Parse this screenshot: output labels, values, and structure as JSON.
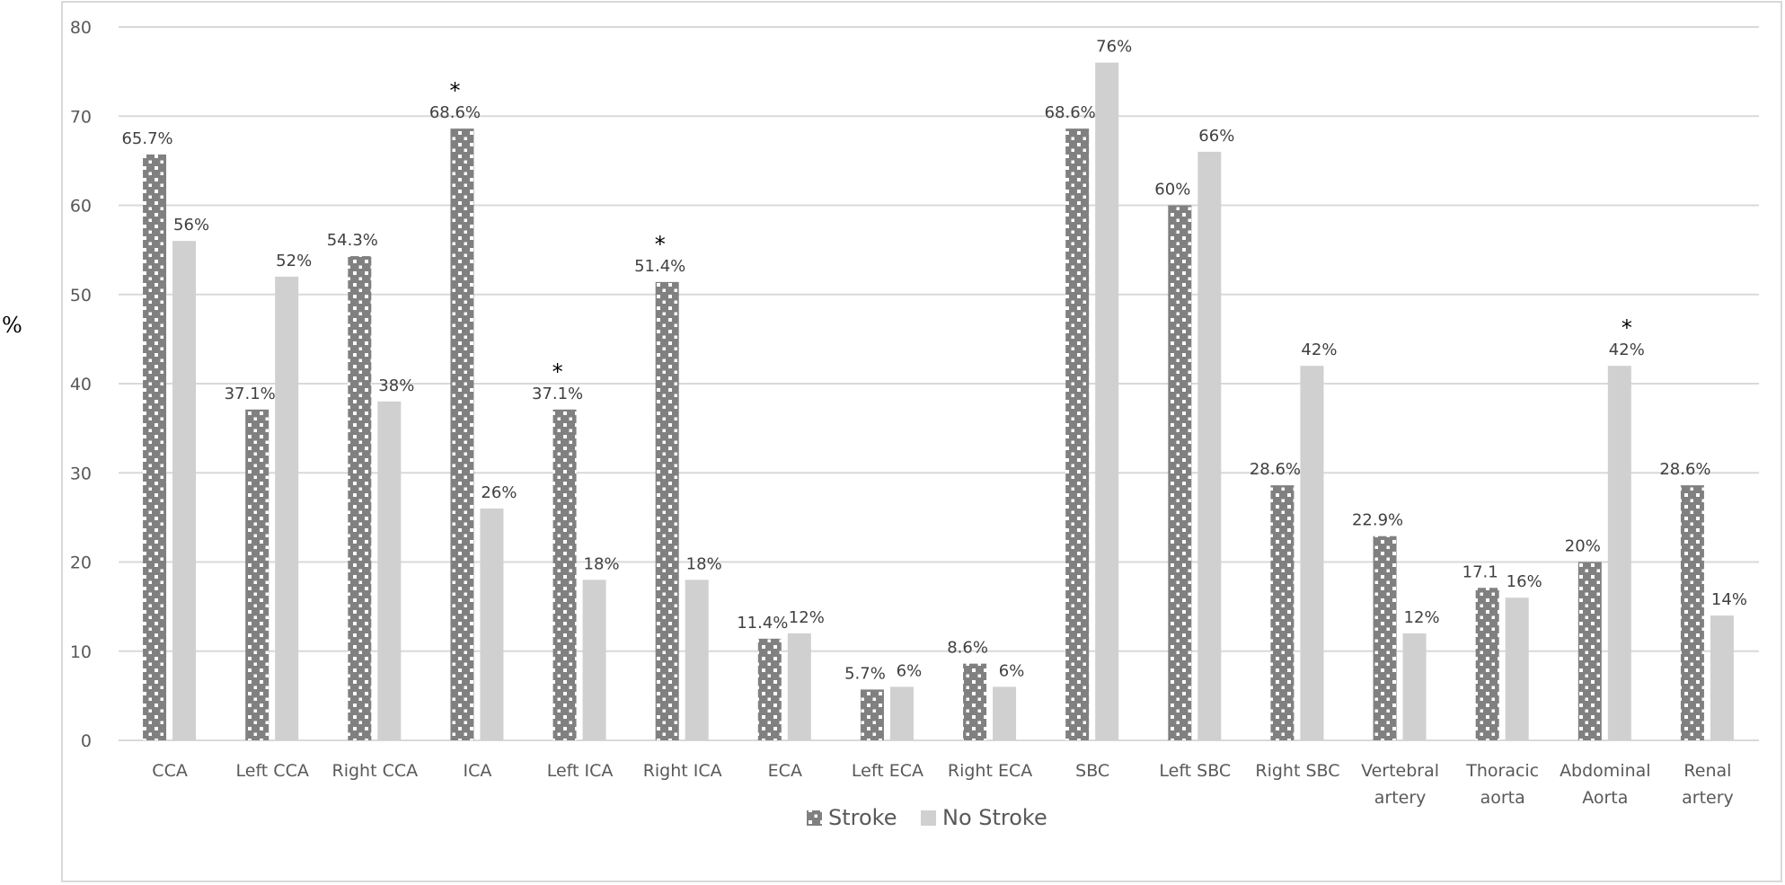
{
  "chart_data": {
    "type": "bar",
    "ylabel": "%",
    "ylim": [
      0,
      80
    ],
    "yticks": [
      0,
      10,
      20,
      30,
      40,
      50,
      60,
      70,
      80
    ],
    "grid": true,
    "legend_position": "bottom",
    "categories": [
      [
        "CCA"
      ],
      [
        "Left CCA"
      ],
      [
        "Right CCA"
      ],
      [
        "ICA"
      ],
      [
        "Left ICA"
      ],
      [
        "Right ICA"
      ],
      [
        "ECA"
      ],
      [
        "Left ECA"
      ],
      [
        "Right ECA"
      ],
      [
        "SBC"
      ],
      [
        "Left SBC"
      ],
      [
        "Right SBC"
      ],
      [
        "Vertebral",
        "artery"
      ],
      [
        "Thoracic",
        "aorta"
      ],
      [
        "Abdominal",
        "Aorta"
      ],
      [
        "Renal",
        "artery"
      ]
    ],
    "series": [
      {
        "name": "Stroke",
        "color": "#808080",
        "pattern": "white-dots",
        "values": [
          65.7,
          37.1,
          54.3,
          68.6,
          37.1,
          51.4,
          11.4,
          5.7,
          8.6,
          68.6,
          60,
          28.6,
          22.9,
          17.1,
          20,
          28.6
        ],
        "labels": [
          "65.7%",
          "37.1%",
          "54.3%",
          "68.6%",
          "37.1%",
          "51.4%",
          "11.4%",
          "5.7%",
          "8.6%",
          "68.6%",
          "60%",
          "28.6%",
          "22.9%",
          "17.1",
          "20%",
          "28.6%"
        ],
        "significant": [
          false,
          false,
          false,
          true,
          true,
          true,
          false,
          false,
          false,
          false,
          false,
          false,
          false,
          false,
          false,
          false
        ]
      },
      {
        "name": "No Stroke",
        "color": "#d0d0d0",
        "values": [
          56,
          52,
          38,
          26,
          18,
          18,
          12,
          6,
          6,
          76,
          66,
          42,
          12,
          16,
          42,
          14
        ],
        "labels": [
          "56%",
          "52%",
          "38%",
          "26%",
          "18%",
          "18%",
          "12%",
          "6%",
          "6%",
          "76%",
          "66%",
          "42%",
          "12%",
          "16%",
          "42%",
          "14%"
        ],
        "significant": [
          false,
          false,
          false,
          false,
          false,
          false,
          false,
          false,
          false,
          false,
          false,
          false,
          false,
          false,
          true,
          false
        ]
      }
    ],
    "significance_marker": "*"
  }
}
